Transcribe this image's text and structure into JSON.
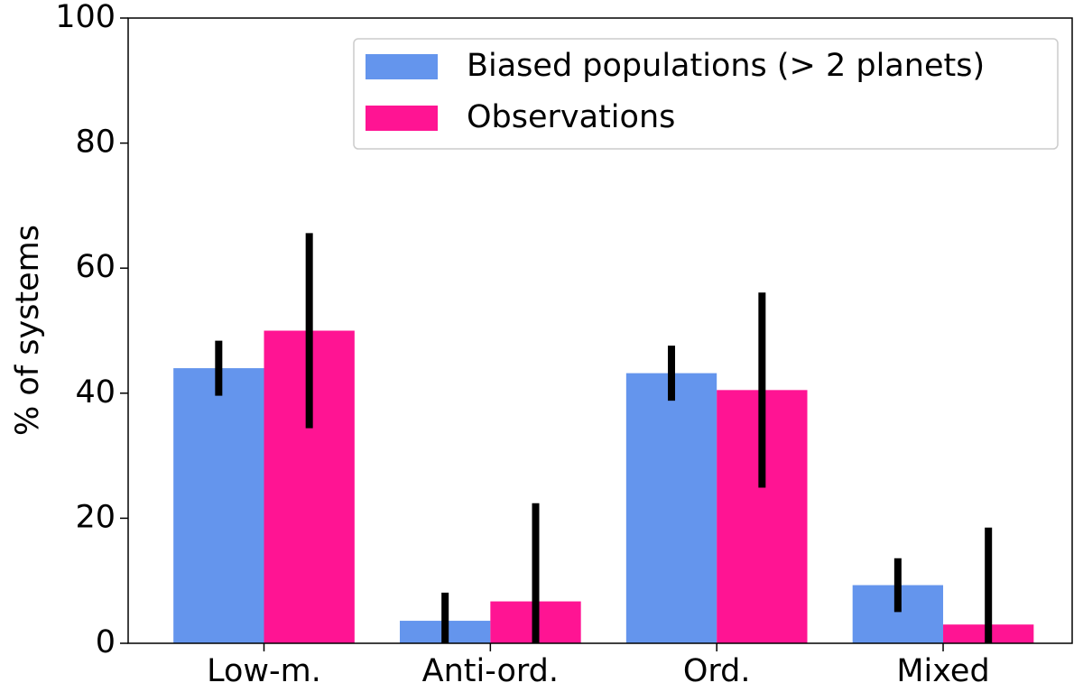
{
  "chart_data": {
    "type": "bar",
    "y_label": "% of systems",
    "categories": [
      "Low-m.",
      "Anti-ord.",
      "Ord.",
      "Mixed"
    ],
    "series": [
      {
        "name": "Biased populations (> 2 planets)",
        "color": "#6495ed",
        "values": [
          44.0,
          3.6,
          43.2,
          9.3
        ],
        "errors": [
          4.4,
          4.5,
          4.4,
          4.3
        ]
      },
      {
        "name": "Observations",
        "color": "#ff1493",
        "values": [
          50.0,
          6.7,
          40.5,
          3.0
        ],
        "errors": [
          15.6,
          15.7,
          15.6,
          15.5
        ]
      }
    ],
    "ylim": [
      0,
      100
    ],
    "yticks": [
      0,
      20,
      40,
      60,
      80,
      100
    ],
    "legend": "upper right",
    "grid": false
  }
}
